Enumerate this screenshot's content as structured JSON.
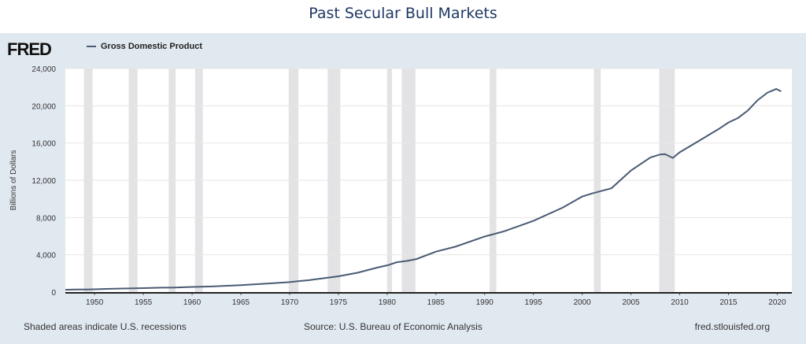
{
  "page_title": "Past Secular Bull Markets",
  "logo": "FRED",
  "footer": {
    "left": "Shaded areas indicate U.S. recessions",
    "center": "Source: U.S. Bureau of Economic Analysis",
    "right": "fred.stlouisfed.org"
  },
  "chart_data": {
    "type": "line",
    "title": "",
    "xlabel": "",
    "ylabel": "Billions of Dollars",
    "xlim": [
      1947,
      2021.5
    ],
    "ylim": [
      0,
      24000
    ],
    "grid": true,
    "legend": "top-left",
    "line_color": "#4a5b73",
    "recession_color": "#e3e3e6",
    "xticks": [
      "1950",
      "1955",
      "1960",
      "1965",
      "1970",
      "1975",
      "1980",
      "1985",
      "1990",
      "1995",
      "2000",
      "2005",
      "2010",
      "2015",
      "2020"
    ],
    "yticks": [
      "0",
      "4,000",
      "8,000",
      "12,000",
      "16,000",
      "20,000",
      "24,000"
    ],
    "series": [
      {
        "name": "Gross Domestic Product",
        "x": [
          1947,
          1948,
          1949,
          1950,
          1952,
          1955,
          1957,
          1958,
          1960,
          1962,
          1965,
          1968,
          1970,
          1972,
          1974,
          1975,
          1977,
          1979,
          1980,
          1981,
          1982,
          1983,
          1985,
          1987,
          1990,
          1992,
          1995,
          1998,
          2000,
          2001,
          2003,
          2005,
          2007,
          2008,
          2008.5,
          2009.3,
          2010,
          2012,
          2014,
          2015,
          2016,
          2017,
          2018,
          2019,
          2019.9,
          2020.4
        ],
        "y": [
          243,
          270,
          272,
          300,
          360,
          425,
          475,
          480,
          545,
          600,
          740,
          930,
          1070,
          1280,
          1550,
          1690,
          2080,
          2630,
          2860,
          3200,
          3340,
          3540,
          4340,
          4870,
          5960,
          6520,
          7640,
          9060,
          10250,
          10580,
          11140,
          13040,
          14450,
          14770,
          14800,
          14400,
          15000,
          16250,
          17500,
          18200,
          18700,
          19500,
          20600,
          21400,
          21800,
          21550
        ]
      }
    ],
    "recessions": [
      [
        1948.9,
        1949.8
      ],
      [
        1953.5,
        1954.4
      ],
      [
        1957.6,
        1958.3
      ],
      [
        1960.3,
        1961.1
      ],
      [
        1969.9,
        1970.9
      ],
      [
        1973.9,
        1975.2
      ],
      [
        1980.0,
        1980.5
      ],
      [
        1981.5,
        1982.9
      ],
      [
        1990.5,
        1991.2
      ],
      [
        2001.2,
        2001.9
      ],
      [
        2007.9,
        2009.5
      ]
    ]
  }
}
